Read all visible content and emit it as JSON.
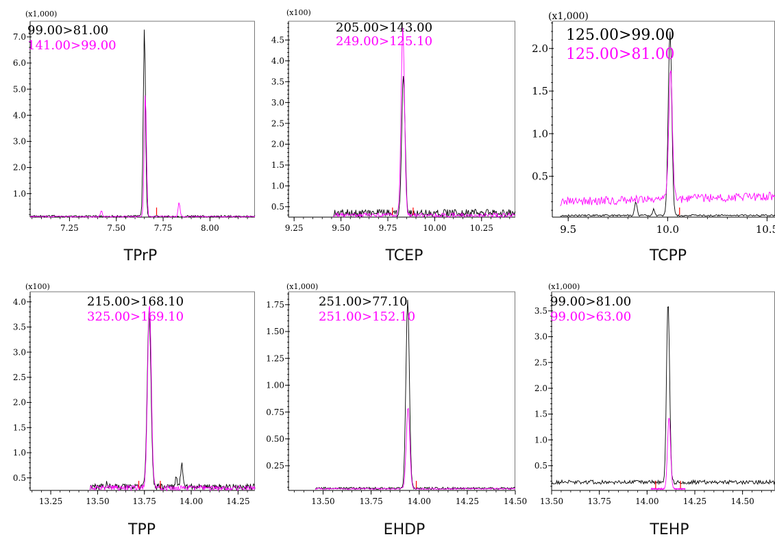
{
  "colors": {
    "transition_1": "#000000",
    "transition_2": "#ff00ff",
    "integration_marker": "#ff0000",
    "frame": "#000000"
  },
  "chart_data": [
    {
      "type": "line",
      "title": "TPrP",
      "multiplier": "(x1,000)",
      "xlim": [
        7.04,
        8.24
      ],
      "ylim": [
        0.1,
        7.6
      ],
      "xticks": [
        7.25,
        7.5,
        7.75,
        8.0
      ],
      "xtick_labels": [
        "7.25",
        "7.50",
        "7.75",
        "8.00"
      ],
      "yticks": [
        1.0,
        2.0,
        3.0,
        4.0,
        5.0,
        6.0,
        7.0
      ],
      "ytick_labels": [
        "1.0",
        "2.0",
        "3.0",
        "4.0",
        "5.0",
        "6.0",
        "7.0"
      ],
      "series": [
        {
          "name": "99.00>81.00",
          "color": "#000000",
          "baseline": 0.13,
          "noise": 0.04,
          "peaks": [
            {
              "x": 7.65,
              "y": 7.35,
              "w": 0.006
            }
          ]
        },
        {
          "name": "141.00>99.00",
          "color": "#ff00ff",
          "baseline": 0.12,
          "noise": 0.03,
          "peaks": [
            {
              "x": 7.655,
              "y": 4.85,
              "w": 0.006
            },
            {
              "x": 7.42,
              "y": 0.35,
              "w": 0.005
            },
            {
              "x": 7.835,
              "y": 0.7,
              "w": 0.005
            }
          ]
        }
      ],
      "markers": [
        7.715
      ]
    },
    {
      "type": "line",
      "title": "TCEP",
      "multiplier": "(x100)",
      "xlim": [
        9.22,
        10.43
      ],
      "ylim": [
        0.25,
        4.95
      ],
      "xticks": [
        9.25,
        9.5,
        9.75,
        10.0,
        10.25
      ],
      "xtick_labels": [
        "9.25",
        "9.50",
        "9.75",
        "10.00",
        "10.25"
      ],
      "yticks": [
        0.5,
        1.0,
        1.5,
        2.0,
        2.5,
        3.0,
        3.5,
        4.0,
        4.5
      ],
      "ytick_labels": [
        "0.5",
        "1.0",
        "1.5",
        "2.0",
        "2.5",
        "3.0",
        "3.5",
        "4.0",
        "4.5"
      ],
      "series": [
        {
          "name": "205.00>143.00",
          "color": "#000000",
          "baseline": 0.35,
          "noise": 0.09,
          "start": 9.46,
          "peaks": [
            {
              "x": 9.833,
              "y": 3.65,
              "w": 0.009
            }
          ]
        },
        {
          "name": "249.00>125.10",
          "color": "#ff00ff",
          "baseline": 0.3,
          "noise": 0.05,
          "start": 9.46,
          "peaks": [
            {
              "x": 9.83,
              "y": 4.8,
              "w": 0.009
            }
          ]
        }
      ],
      "markers": [
        9.775,
        9.885
      ]
    },
    {
      "type": "line",
      "title": "TCPP",
      "multiplier": "(x1,000)",
      "xlim": [
        9.42,
        10.54
      ],
      "ylim": [
        0.02,
        2.32
      ],
      "xticks": [
        9.5,
        10.0,
        10.5
      ],
      "xtick_labels": [
        "9.5",
        "10.0",
        "10.5"
      ],
      "yticks": [
        0.5,
        1.0,
        1.5,
        2.0
      ],
      "ytick_labels": [
        "0.5",
        "1.0",
        "1.5",
        "2.0"
      ],
      "series": [
        {
          "name": "125.00>99.00",
          "color": "#000000",
          "baseline": 0.04,
          "noise": 0.01,
          "start": 9.46,
          "peaks": [
            {
              "x": 10.012,
              "y": 2.2,
              "w": 0.009
            },
            {
              "x": 9.84,
              "y": 0.2,
              "w": 0.006
            },
            {
              "x": 9.93,
              "y": 0.12,
              "w": 0.005
            }
          ]
        },
        {
          "name": "125.00>81.00",
          "color": "#ff00ff",
          "baseline": 0.2,
          "noise": 0.05,
          "start": 9.46,
          "slope": 0.06,
          "peaks": [
            {
              "x": 10.015,
              "y": 1.72,
              "w": 0.009
            }
          ]
        }
      ],
      "markers": [
        10.06
      ]
    },
    {
      "type": "line",
      "title": "TPP",
      "multiplier": "(x100)",
      "xlim": [
        13.14,
        14.34
      ],
      "ylim": [
        0.25,
        4.2
      ],
      "xticks": [
        13.25,
        13.5,
        13.75,
        14.0,
        14.25
      ],
      "xtick_labels": [
        "13.25",
        "13.50",
        "13.75",
        "14.00",
        "14.25"
      ],
      "yticks": [
        0.5,
        1.0,
        1.5,
        2.0,
        2.5,
        3.0,
        3.5,
        4.0
      ],
      "ytick_labels": [
        "0.5",
        "1.0",
        "1.5",
        "2.0",
        "2.5",
        "3.0",
        "3.5",
        "4.0"
      ],
      "series": [
        {
          "name": "215.00>168.10",
          "color": "#000000",
          "baseline": 0.32,
          "noise": 0.06,
          "start": 13.46,
          "peaks": [
            {
              "x": 13.775,
              "y": 3.8,
              "w": 0.01
            },
            {
              "x": 13.95,
              "y": 0.78,
              "w": 0.006
            },
            {
              "x": 13.92,
              "y": 0.55,
              "w": 0.005
            },
            {
              "x": 13.55,
              "y": 0.42,
              "w": 0.004
            }
          ]
        },
        {
          "name": "325.00>169.10",
          "color": "#ff00ff",
          "baseline": 0.3,
          "noise": 0.05,
          "start": 13.46,
          "peaks": [
            {
              "x": 13.777,
              "y": 3.95,
              "w": 0.01
            }
          ]
        }
      ],
      "markers": [
        13.72,
        13.835
      ]
    },
    {
      "type": "line",
      "title": "EHDP",
      "multiplier": "(x1,000)",
      "xlim": [
        13.32,
        14.5
      ],
      "ylim": [
        0.02,
        1.87
      ],
      "xticks": [
        13.5,
        13.75,
        14.0,
        14.25,
        14.5
      ],
      "xtick_labels": [
        "13.50",
        "13.75",
        "14.00",
        "14.25",
        "14.50"
      ],
      "yticks": [
        0.25,
        0.5,
        0.75,
        1.0,
        1.25,
        1.5,
        1.75
      ],
      "ytick_labels": [
        "0.25",
        "0.50",
        "0.75",
        "1.00",
        "1.25",
        "1.50",
        "1.75"
      ],
      "series": [
        {
          "name": "251.00>77.10",
          "color": "#000000",
          "baseline": 0.04,
          "noise": 0.01,
          "start": 13.46,
          "peaks": [
            {
              "x": 13.94,
              "y": 1.8,
              "w": 0.009
            }
          ]
        },
        {
          "name": "251.00>152.10",
          "color": "#ff00ff",
          "baseline": 0.035,
          "noise": 0.008,
          "start": 13.46,
          "peaks": [
            {
              "x": 13.942,
              "y": 0.8,
              "w": 0.009
            }
          ]
        }
      ],
      "markers": [
        13.985
      ]
    },
    {
      "type": "line",
      "title": "TEHP",
      "multiplier": "(x1,000)",
      "xlim": [
        13.5,
        14.67
      ],
      "ylim": [
        0.02,
        3.87
      ],
      "xticks": [
        13.5,
        13.75,
        14.0,
        14.25,
        14.5
      ],
      "xtick_labels": [
        "13.50",
        "13.75",
        "14.00",
        "14.25",
        "14.50"
      ],
      "yticks": [
        0.5,
        1.0,
        1.5,
        2.0,
        2.5,
        3.0,
        3.5
      ],
      "ytick_labels": [
        "0.5",
        "1.0",
        "1.5",
        "2.0",
        "2.5",
        "3.0",
        "3.5"
      ],
      "series": [
        {
          "name": "99.00>81.00",
          "color": "#000000",
          "baseline": 0.18,
          "noise": 0.04,
          "peaks": [
            {
              "x": 14.11,
              "y": 3.72,
              "w": 0.008
            }
          ]
        },
        {
          "name": "99.00>63.00",
          "color": "#ff00ff",
          "baseline": 0.05,
          "noise": 0.01,
          "start": 14.02,
          "end": 14.2,
          "peaks": [
            {
              "x": 14.115,
              "y": 1.42,
              "w": 0.008
            }
          ]
        }
      ],
      "markers": [
        14.045,
        14.175
      ]
    }
  ]
}
